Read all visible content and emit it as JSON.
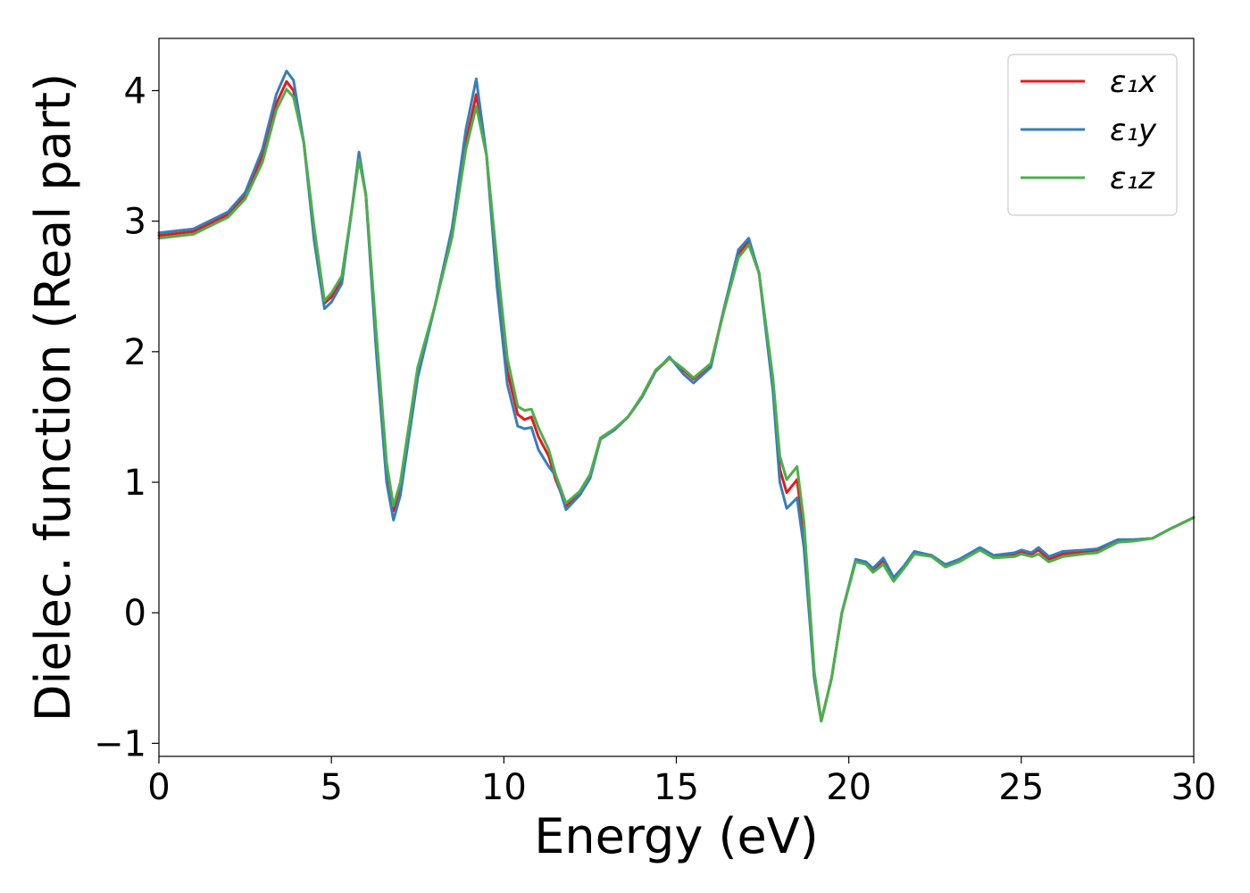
{
  "chart_data": {
    "type": "line",
    "xlabel": "Energy (eV)",
    "ylabel": "Dielec. function (Real part)",
    "xlim": [
      0,
      30
    ],
    "ylim": [
      -1.1,
      4.4
    ],
    "xticks": [
      0,
      5,
      10,
      15,
      20,
      25,
      30
    ],
    "yticks": [
      -1,
      0,
      1,
      2,
      3,
      4
    ],
    "xtick_labels": [
      "0",
      "5",
      "10",
      "15",
      "20",
      "25",
      "30"
    ],
    "ytick_labels": [
      "−1",
      "0",
      "1",
      "2",
      "3",
      "4"
    ],
    "grid": false,
    "legend_position": "top-right",
    "series": [
      {
        "name": "ε₁x",
        "color": "#e41a1c",
        "points": [
          [
            0,
            2.89
          ],
          [
            1,
            2.92
          ],
          [
            2,
            3.05
          ],
          [
            2.5,
            3.2
          ],
          [
            3,
            3.5
          ],
          [
            3.4,
            3.9
          ],
          [
            3.7,
            4.07
          ],
          [
            3.9,
            4.0
          ],
          [
            4.2,
            3.6
          ],
          [
            4.5,
            2.9
          ],
          [
            4.8,
            2.37
          ],
          [
            5.0,
            2.42
          ],
          [
            5.3,
            2.55
          ],
          [
            5.6,
            3.1
          ],
          [
            5.8,
            3.5
          ],
          [
            6.0,
            3.2
          ],
          [
            6.3,
            2.1
          ],
          [
            6.6,
            1.1
          ],
          [
            6.8,
            0.78
          ],
          [
            7.0,
            0.95
          ],
          [
            7.5,
            1.85
          ],
          [
            8.0,
            2.35
          ],
          [
            8.5,
            2.9
          ],
          [
            8.9,
            3.6
          ],
          [
            9.2,
            3.97
          ],
          [
            9.5,
            3.5
          ],
          [
            9.8,
            2.6
          ],
          [
            10.1,
            1.85
          ],
          [
            10.4,
            1.52
          ],
          [
            10.6,
            1.48
          ],
          [
            10.8,
            1.5
          ],
          [
            11.0,
            1.35
          ],
          [
            11.3,
            1.2
          ],
          [
            11.5,
            1.02
          ],
          [
            11.8,
            0.82
          ],
          [
            12.2,
            0.92
          ],
          [
            12.5,
            1.05
          ],
          [
            12.8,
            1.33
          ],
          [
            13.2,
            1.4
          ],
          [
            13.6,
            1.5
          ],
          [
            14.0,
            1.65
          ],
          [
            14.4,
            1.85
          ],
          [
            14.8,
            1.95
          ],
          [
            15.2,
            1.86
          ],
          [
            15.5,
            1.79
          ],
          [
            16.0,
            1.9
          ],
          [
            16.4,
            2.35
          ],
          [
            16.8,
            2.75
          ],
          [
            17.1,
            2.84
          ],
          [
            17.4,
            2.6
          ],
          [
            17.8,
            1.75
          ],
          [
            18.0,
            1.1
          ],
          [
            18.2,
            0.92
          ],
          [
            18.5,
            1.02
          ],
          [
            18.7,
            0.6
          ],
          [
            19.0,
            -0.5
          ],
          [
            19.2,
            -0.83
          ],
          [
            19.5,
            -0.5
          ],
          [
            19.8,
            0.0
          ],
          [
            20.2,
            0.4
          ],
          [
            20.5,
            0.38
          ],
          [
            20.7,
            0.33
          ],
          [
            21.0,
            0.4
          ],
          [
            21.3,
            0.26
          ],
          [
            21.6,
            0.35
          ],
          [
            21.9,
            0.46
          ],
          [
            22.4,
            0.44
          ],
          [
            22.8,
            0.36
          ],
          [
            23.2,
            0.4
          ],
          [
            23.8,
            0.49
          ],
          [
            24.2,
            0.43
          ],
          [
            24.8,
            0.45
          ],
          [
            25.0,
            0.47
          ],
          [
            25.3,
            0.45
          ],
          [
            25.5,
            0.48
          ],
          [
            25.8,
            0.41
          ],
          [
            26.2,
            0.45
          ],
          [
            26.8,
            0.47
          ],
          [
            27.2,
            0.48
          ],
          [
            27.8,
            0.55
          ],
          [
            28.3,
            0.56
          ],
          [
            28.8,
            0.57
          ],
          [
            29.3,
            0.64
          ],
          [
            30,
            0.73
          ]
        ]
      },
      {
        "name": "ε₁y",
        "color": "#377eb8",
        "points": [
          [
            0,
            2.91
          ],
          [
            1,
            2.94
          ],
          [
            2,
            3.07
          ],
          [
            2.5,
            3.22
          ],
          [
            3,
            3.55
          ],
          [
            3.4,
            3.97
          ],
          [
            3.7,
            4.15
          ],
          [
            3.9,
            4.08
          ],
          [
            4.2,
            3.6
          ],
          [
            4.5,
            2.85
          ],
          [
            4.8,
            2.33
          ],
          [
            5.0,
            2.38
          ],
          [
            5.3,
            2.52
          ],
          [
            5.6,
            3.1
          ],
          [
            5.8,
            3.53
          ],
          [
            6.0,
            3.2
          ],
          [
            6.3,
            2.0
          ],
          [
            6.6,
            1.0
          ],
          [
            6.8,
            0.71
          ],
          [
            7.0,
            0.9
          ],
          [
            7.5,
            1.8
          ],
          [
            8.0,
            2.35
          ],
          [
            8.5,
            2.95
          ],
          [
            8.9,
            3.7
          ],
          [
            9.2,
            4.09
          ],
          [
            9.5,
            3.5
          ],
          [
            9.8,
            2.5
          ],
          [
            10.1,
            1.75
          ],
          [
            10.4,
            1.43
          ],
          [
            10.6,
            1.41
          ],
          [
            10.8,
            1.42
          ],
          [
            11.0,
            1.25
          ],
          [
            11.3,
            1.12
          ],
          [
            11.5,
            1.05
          ],
          [
            11.8,
            0.79
          ],
          [
            12.2,
            0.9
          ],
          [
            12.5,
            1.03
          ],
          [
            12.8,
            1.33
          ],
          [
            13.2,
            1.4
          ],
          [
            13.6,
            1.5
          ],
          [
            14.0,
            1.65
          ],
          [
            14.4,
            1.85
          ],
          [
            14.8,
            1.96
          ],
          [
            15.2,
            1.83
          ],
          [
            15.5,
            1.76
          ],
          [
            16.0,
            1.88
          ],
          [
            16.4,
            2.35
          ],
          [
            16.8,
            2.78
          ],
          [
            17.1,
            2.87
          ],
          [
            17.4,
            2.6
          ],
          [
            17.8,
            1.7
          ],
          [
            18.0,
            1.0
          ],
          [
            18.2,
            0.8
          ],
          [
            18.5,
            0.88
          ],
          [
            18.7,
            0.5
          ],
          [
            19.0,
            -0.5
          ],
          [
            19.2,
            -0.83
          ],
          [
            19.5,
            -0.5
          ],
          [
            19.8,
            0.0
          ],
          [
            20.2,
            0.41
          ],
          [
            20.5,
            0.39
          ],
          [
            20.7,
            0.34
          ],
          [
            21.0,
            0.42
          ],
          [
            21.3,
            0.27
          ],
          [
            21.6,
            0.36
          ],
          [
            21.9,
            0.47
          ],
          [
            22.4,
            0.44
          ],
          [
            22.8,
            0.37
          ],
          [
            23.2,
            0.41
          ],
          [
            23.8,
            0.5
          ],
          [
            24.2,
            0.44
          ],
          [
            24.8,
            0.46
          ],
          [
            25.0,
            0.48
          ],
          [
            25.3,
            0.46
          ],
          [
            25.5,
            0.5
          ],
          [
            25.8,
            0.43
          ],
          [
            26.2,
            0.47
          ],
          [
            26.8,
            0.48
          ],
          [
            27.2,
            0.49
          ],
          [
            27.8,
            0.56
          ],
          [
            28.3,
            0.56
          ],
          [
            28.8,
            0.57
          ],
          [
            29.3,
            0.64
          ],
          [
            30,
            0.73
          ]
        ]
      },
      {
        "name": "ε₁z",
        "color": "#4daf4a",
        "points": [
          [
            0,
            2.87
          ],
          [
            1,
            2.9
          ],
          [
            2,
            3.03
          ],
          [
            2.5,
            3.17
          ],
          [
            3,
            3.45
          ],
          [
            3.4,
            3.85
          ],
          [
            3.7,
            4.01
          ],
          [
            3.9,
            3.95
          ],
          [
            4.2,
            3.6
          ],
          [
            4.5,
            2.95
          ],
          [
            4.8,
            2.39
          ],
          [
            5.0,
            2.45
          ],
          [
            5.3,
            2.58
          ],
          [
            5.6,
            3.1
          ],
          [
            5.8,
            3.47
          ],
          [
            6.0,
            3.2
          ],
          [
            6.3,
            2.15
          ],
          [
            6.6,
            1.15
          ],
          [
            6.8,
            0.82
          ],
          [
            7.0,
            1.0
          ],
          [
            7.5,
            1.88
          ],
          [
            8.0,
            2.35
          ],
          [
            8.5,
            2.88
          ],
          [
            8.9,
            3.55
          ],
          [
            9.2,
            3.88
          ],
          [
            9.5,
            3.5
          ],
          [
            9.8,
            2.7
          ],
          [
            10.1,
            1.95
          ],
          [
            10.4,
            1.58
          ],
          [
            10.6,
            1.55
          ],
          [
            10.8,
            1.56
          ],
          [
            11.0,
            1.42
          ],
          [
            11.3,
            1.25
          ],
          [
            11.5,
            1.06
          ],
          [
            11.8,
            0.84
          ],
          [
            12.2,
            0.93
          ],
          [
            12.5,
            1.06
          ],
          [
            12.8,
            1.34
          ],
          [
            13.2,
            1.41
          ],
          [
            13.6,
            1.5
          ],
          [
            14.0,
            1.66
          ],
          [
            14.4,
            1.86
          ],
          [
            14.8,
            1.95
          ],
          [
            15.2,
            1.87
          ],
          [
            15.5,
            1.8
          ],
          [
            16.0,
            1.91
          ],
          [
            16.4,
            2.33
          ],
          [
            16.8,
            2.72
          ],
          [
            17.1,
            2.82
          ],
          [
            17.4,
            2.6
          ],
          [
            17.8,
            1.8
          ],
          [
            18.0,
            1.2
          ],
          [
            18.2,
            1.02
          ],
          [
            18.5,
            1.12
          ],
          [
            18.7,
            0.7
          ],
          [
            19.0,
            -0.45
          ],
          [
            19.2,
            -0.83
          ],
          [
            19.5,
            -0.5
          ],
          [
            19.8,
            0.0
          ],
          [
            20.2,
            0.39
          ],
          [
            20.5,
            0.37
          ],
          [
            20.7,
            0.31
          ],
          [
            21.0,
            0.37
          ],
          [
            21.3,
            0.24
          ],
          [
            21.6,
            0.34
          ],
          [
            21.9,
            0.45
          ],
          [
            22.4,
            0.43
          ],
          [
            22.8,
            0.35
          ],
          [
            23.2,
            0.39
          ],
          [
            23.8,
            0.48
          ],
          [
            24.2,
            0.42
          ],
          [
            24.8,
            0.43
          ],
          [
            25.0,
            0.45
          ],
          [
            25.3,
            0.43
          ],
          [
            25.5,
            0.45
          ],
          [
            25.8,
            0.39
          ],
          [
            26.2,
            0.43
          ],
          [
            26.8,
            0.45
          ],
          [
            27.2,
            0.46
          ],
          [
            27.8,
            0.54
          ],
          [
            28.3,
            0.55
          ],
          [
            28.8,
            0.57
          ],
          [
            29.3,
            0.64
          ],
          [
            30,
            0.73
          ]
        ]
      }
    ]
  }
}
